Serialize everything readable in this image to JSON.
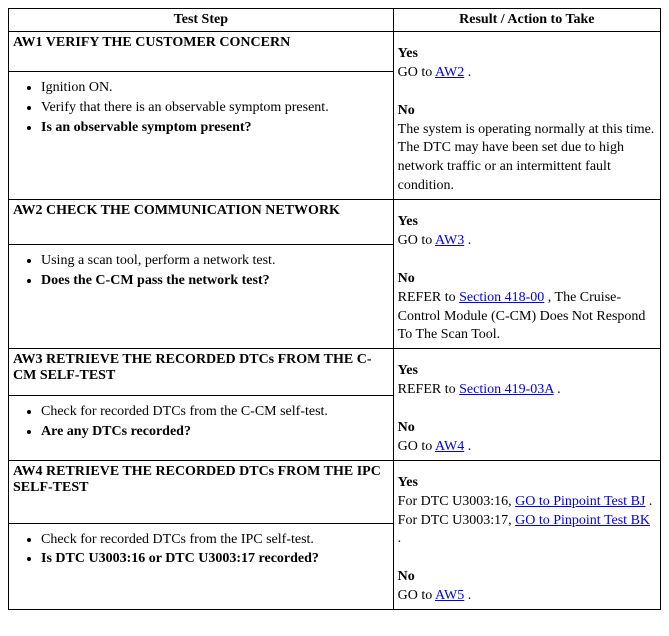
{
  "headers": {
    "step": "Test Step",
    "result": "Result / Action to Take"
  },
  "rows": [
    {
      "title": "AW1 VERIFY THE CUSTOMER CONCERN",
      "bullets": [
        {
          "text": "Ignition ON.",
          "bold": false
        },
        {
          "text": "Verify that there is an observable symptom present.",
          "bold": false
        },
        {
          "text": "Is an observable symptom present?",
          "bold": true
        }
      ],
      "result": {
        "yes": {
          "pre": "GO to ",
          "link": "AW2",
          "post": " ."
        },
        "no_text": "The system is operating normally at this time. The DTC may have been set due to high network traffic or an intermittent fault condition."
      }
    },
    {
      "title": "AW2 CHECK THE COMMUNICATION NETWORK",
      "bullets": [
        {
          "text": "Using a scan tool, perform a network test.",
          "bold": false
        },
        {
          "text": "Does the C-CM pass the network test?",
          "bold": true
        }
      ],
      "result": {
        "yes": {
          "pre": "GO to ",
          "link": "AW3",
          "post": " ."
        },
        "no": {
          "pre": "REFER to ",
          "link": "Section 418-00",
          "post": " , The Cruise-Control Module (C-CM) Does Not Respond To The Scan Tool."
        }
      }
    },
    {
      "title": "AW3 RETRIEVE THE RECORDED DTCs FROM THE C-CM SELF-TEST",
      "bullets": [
        {
          "text": "Check for recorded DTCs from the C-CM self-test.",
          "bold": false
        },
        {
          "text": "Are any DTCs recorded?",
          "bold": true
        }
      ],
      "result": {
        "yes": {
          "pre": "REFER to ",
          "link": "Section 419-03A",
          "post": " ."
        },
        "no": {
          "pre": "GO to ",
          "link": "AW4",
          "post": " ."
        }
      }
    },
    {
      "title": "AW4 RETRIEVE THE RECORDED DTCs FROM THE IPC SELF-TEST",
      "bullets": [
        {
          "text": "Check for recorded DTCs from the IPC self-test.",
          "bold": false
        },
        {
          "text": "Is DTC U3003:16 or DTC U3003:17 recorded?",
          "bold": true
        }
      ],
      "result": {
        "yes_multi": {
          "parts": [
            {
              "t": "For DTC U3003:16, "
            },
            {
              "link": "GO to Pinpoint Test BJ"
            },
            {
              "t": " . For DTC U3003:17, "
            },
            {
              "link": "GO to Pinpoint Test BK"
            },
            {
              "t": " ."
            }
          ]
        },
        "no": {
          "pre": "GO to ",
          "link": "AW5",
          "post": " ."
        }
      }
    }
  ],
  "labels": {
    "yes": "Yes",
    "no": "No"
  }
}
